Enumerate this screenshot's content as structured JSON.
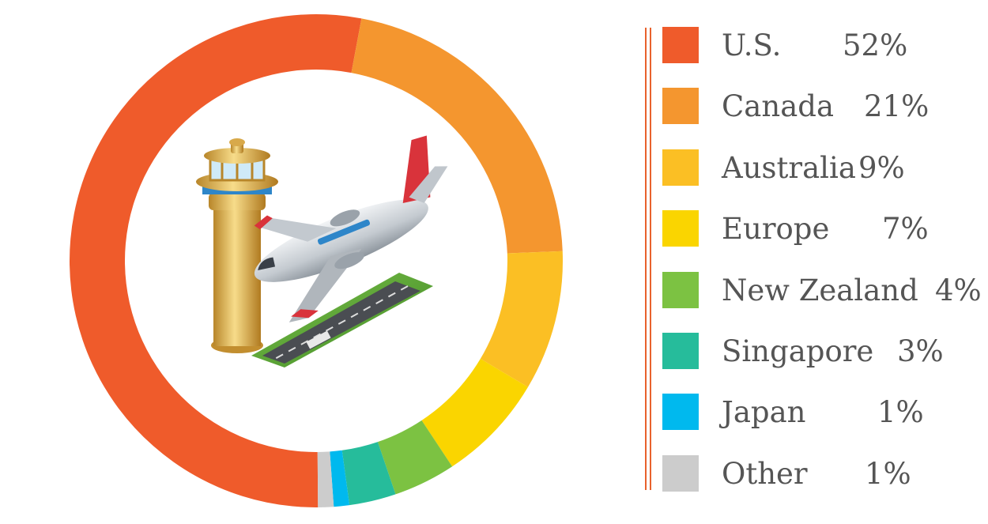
{
  "chart_data": {
    "type": "pie",
    "donut": true,
    "categories": [
      "U.S.",
      "Canada",
      "Australia",
      "Europe",
      "New Zealand",
      "Singapore",
      "Japan",
      "Other"
    ],
    "values": [
      52,
      21,
      9,
      7,
      4,
      3,
      1,
      1
    ],
    "value_labels": [
      "52%",
      "21%",
      "9%",
      "7%",
      "4%",
      "3%",
      "1%",
      "1%"
    ],
    "colors": [
      "#ef5b2b",
      "#f4962f",
      "#fbbf24",
      "#fad500",
      "#7cc242",
      "#26bc9b",
      "#00b9ee",
      "#cccccc"
    ],
    "legend_position": "right",
    "center_icon": "airport-tower-airplane-icon"
  }
}
